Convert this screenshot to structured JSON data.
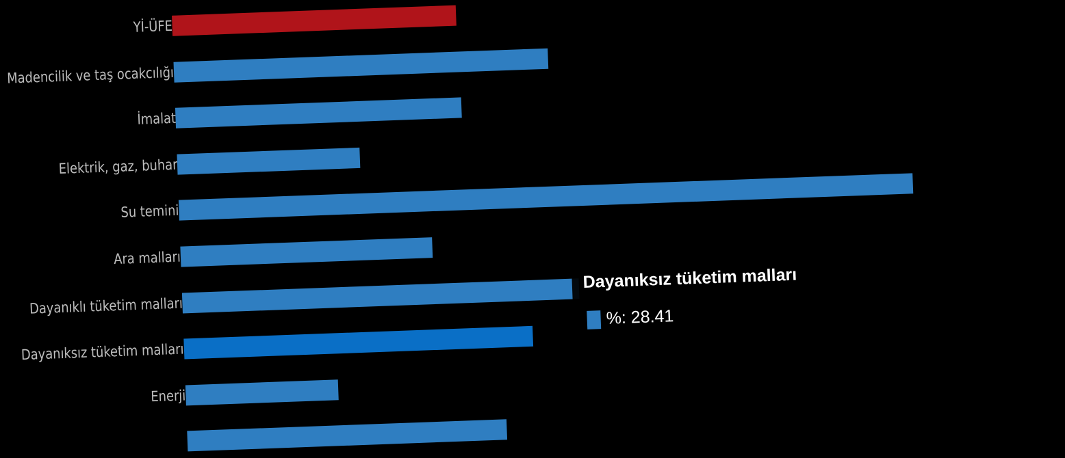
{
  "chart_data": {
    "type": "bar",
    "orientation": "horizontal",
    "categories": [
      "Yİ-ÜFE",
      "Madencilik ve taş ocakcılığı",
      "İmalat",
      "Elektrik, gaz, buhar",
      "Su temini",
      "Ara malları",
      "Dayanıklı tüketim malları",
      "Dayanıksız tüketim malları",
      "Enerji",
      ""
    ],
    "values": [
      23.1,
      30.5,
      23.3,
      14.9,
      59.8,
      20.5,
      32.3,
      28.41,
      12.4,
      26.0
    ],
    "colors": {
      "default": "#2f7ec1",
      "highlight_first": "#b0141a",
      "hovered": "#0a6fc6"
    },
    "highlighted_index": 0,
    "hovered_index": 7,
    "xlim": [
      0,
      60
    ],
    "grid": false,
    "legend": "none",
    "tooltip": {
      "title": "Dayanıksız tüketim malları",
      "series_label": "%",
      "value_text": "%: 28.41"
    }
  }
}
